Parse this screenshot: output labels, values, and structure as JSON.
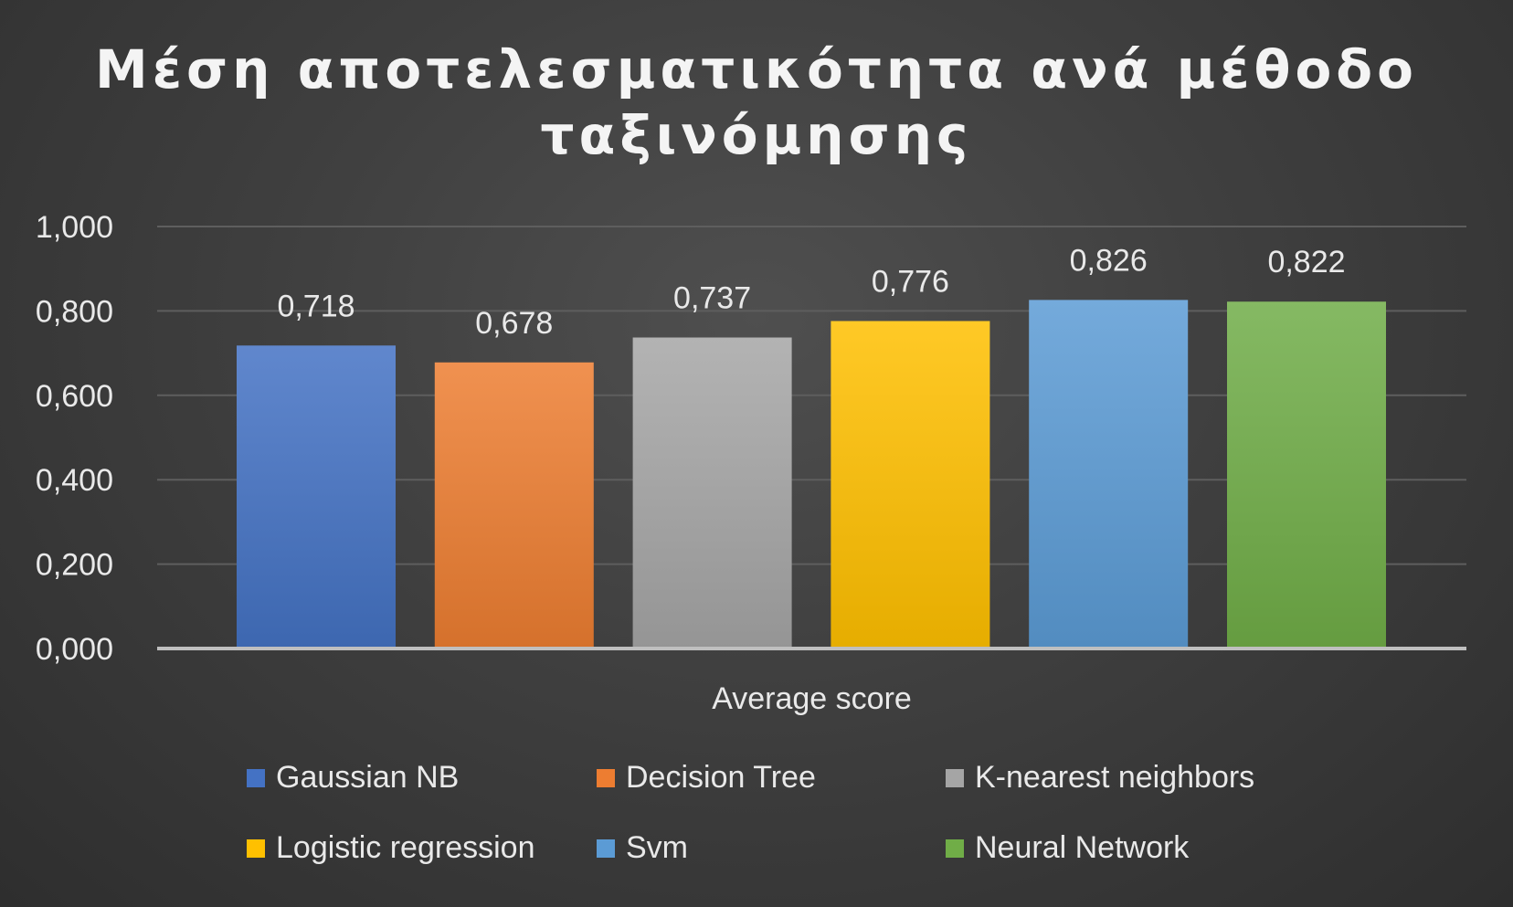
{
  "chart_data": {
    "type": "bar",
    "title_line1": "Μέση αποτελεσματικότητα ανά μέθοδο",
    "title_line2": "ταξινόμησης",
    "xlabel": "Average score",
    "ylabel": "",
    "ylim": [
      0,
      1
    ],
    "yticks": [
      "0,000",
      "0,200",
      "0,400",
      "0,600",
      "0,800",
      "1,000"
    ],
    "ytick_values": [
      0,
      0.2,
      0.4,
      0.6,
      0.8,
      1.0
    ],
    "grid": true,
    "legend_position": "bottom",
    "categories": [
      "Average score"
    ],
    "series": [
      {
        "name": "Gaussian NB",
        "value": 0.718,
        "label": "0,718",
        "color": "#4472c4"
      },
      {
        "name": "Decision Tree",
        "value": 0.678,
        "label": "0,678",
        "color": "#ed7d31"
      },
      {
        "name": "K-nearest neighbors",
        "value": 0.737,
        "label": "0,737",
        "color": "#a5a5a5"
      },
      {
        "name": "Logistic regression",
        "value": 0.776,
        "label": "0,776",
        "color": "#ffc000"
      },
      {
        "name": "Svm",
        "value": 0.826,
        "label": "0,826",
        "color": "#5b9bd5"
      },
      {
        "name": "Neural Network",
        "value": 0.822,
        "label": "0,822",
        "color": "#70ad47"
      }
    ]
  }
}
